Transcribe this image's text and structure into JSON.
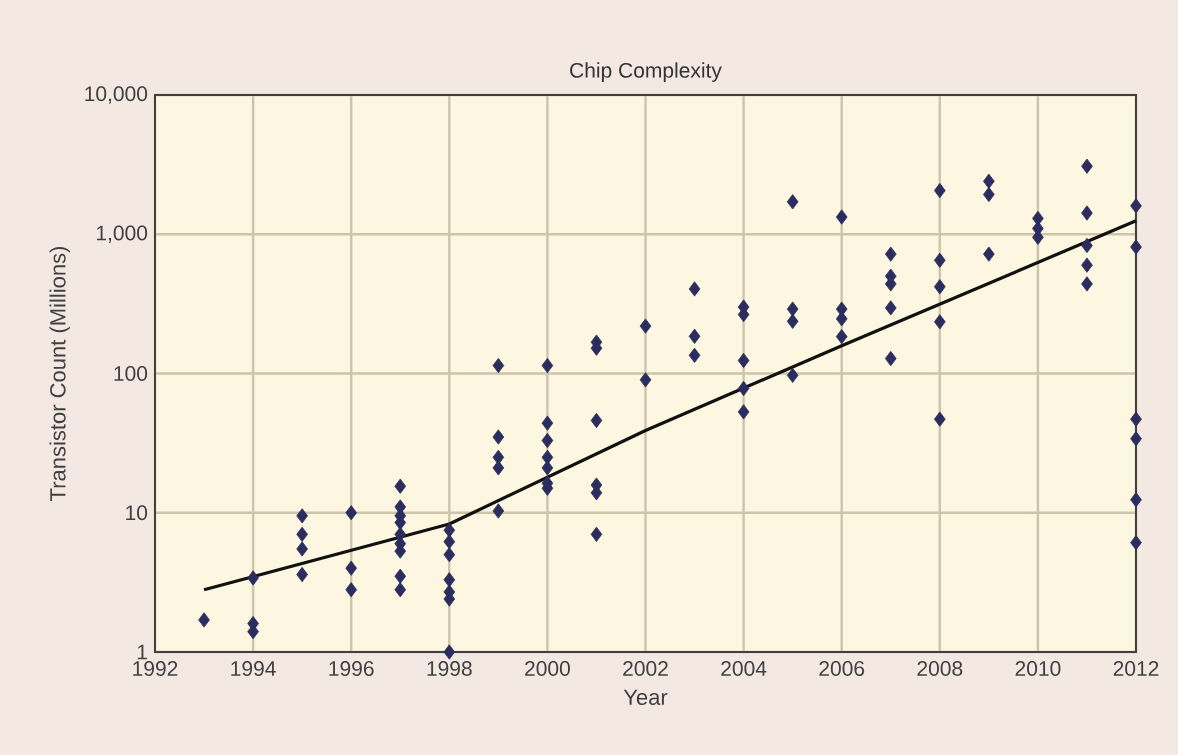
{
  "chart_data": {
    "type": "scatter",
    "title": "Chip Complexity",
    "xlabel": "Year",
    "ylabel": "Transistor Count (Millions)",
    "xlim": [
      1992,
      2012
    ],
    "xticks": [
      1992,
      1994,
      1996,
      1998,
      2000,
      2002,
      2004,
      2006,
      2008,
      2010,
      2012
    ],
    "ylim": [
      1,
      10000
    ],
    "yticks": [
      1,
      10,
      100,
      {
        "value": 1000,
        "label": "1,000"
      },
      {
        "value": 10000,
        "label": "10,000"
      }
    ],
    "log": "y",
    "grid": true,
    "series": [
      {
        "color": "#2b2d5e",
        "marker": "diamond",
        "x": [
          1993,
          1994,
          1994,
          1994,
          1995,
          1995,
          1995,
          1995,
          1996,
          1996,
          1996,
          1997,
          1997,
          1997,
          1997,
          1997,
          1997,
          1997,
          1997,
          1997,
          1998,
          1998,
          1998,
          1998,
          1998,
          1998,
          1998,
          1999,
          1999,
          1999,
          1999,
          1999,
          2000,
          2000,
          2000,
          2000,
          2000,
          2000,
          2000,
          2001,
          2001,
          2001,
          2001,
          2001,
          2001,
          2002,
          2002,
          2003,
          2003,
          2003,
          2004,
          2004,
          2004,
          2004,
          2004,
          2005,
          2005,
          2005,
          2005,
          2006,
          2006,
          2006,
          2006,
          2007,
          2007,
          2007,
          2007,
          2007,
          2008,
          2008,
          2008,
          2008,
          2008,
          2009,
          2009,
          2009,
          2010,
          2010,
          2010,
          2011,
          2011,
          2011,
          2011,
          2011,
          2012,
          2012,
          2012,
          2012,
          2012,
          2012
        ],
        "values": [
          1.7,
          3.4,
          1.6,
          1.4,
          9.5,
          7,
          5.5,
          3.6,
          10,
          4,
          2.8,
          15.5,
          11,
          9.5,
          8.5,
          7,
          6,
          5.3,
          3.5,
          2.8,
          7.5,
          6.2,
          5,
          3.3,
          2.7,
          2.4,
          1,
          114,
          35,
          25,
          21,
          10.3,
          114,
          44,
          33,
          25,
          21,
          16.3,
          15,
          168,
          152,
          46,
          15.8,
          13.9,
          7,
          219,
          90,
          405,
          185,
          135,
          300,
          265,
          124,
          78,
          53,
          1710,
          290,
          237,
          97,
          1330,
          290,
          247,
          184,
          720,
          500,
          440,
          296,
          128,
          2060,
          650,
          420,
          235,
          47,
          2400,
          1930,
          720,
          1300,
          1100,
          950,
          3080,
          1420,
          830,
          600,
          440,
          1600,
          810,
          47,
          34,
          12.4,
          6.1
        ]
      },
      {
        "type": "line",
        "color": "#111111",
        "x": [
          1993,
          1998,
          2002,
          2006,
          2012
        ],
        "values": [
          2.8,
          8.3,
          39,
          158,
          1250
        ]
      }
    ]
  }
}
